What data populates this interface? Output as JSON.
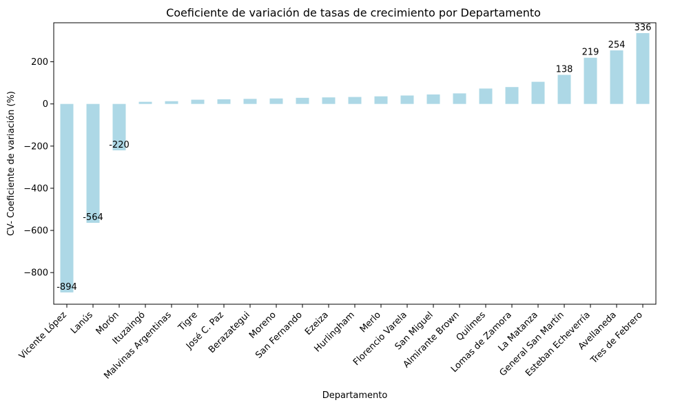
{
  "chart_data": {
    "type": "bar",
    "title": "Coeficiente de variación de tasas de crecimiento por Departamento",
    "xlabel": "Departamento",
    "ylabel": "CV- Coeficiente de variación (%)",
    "ylim": [
      -950,
      385
    ],
    "yticks": [
      -800,
      -600,
      -400,
      -200,
      0,
      200
    ],
    "grid": false,
    "legend": "none",
    "bar_color": "#add8e6",
    "categories": [
      "Vicente López",
      "Lanús",
      "Morón",
      "Ituzaingó",
      "Malvinas Argentinas",
      "Tigre",
      "José C. Paz",
      "Berazategui",
      "Moreno",
      "San Fernando",
      "Ezeiza",
      "Hurlingham",
      "Merlo",
      "Florencio Varela",
      "San Miguel",
      "Almirante Brown",
      "Quilmes",
      "Lomas de Zamora",
      "La Matanza",
      "General San Martín",
      "Esteban Echeverría",
      "Avellaneda",
      "Tres de Febrero"
    ],
    "values": [
      -894,
      -564,
      -220,
      10,
      13,
      20,
      22,
      24,
      26,
      29,
      31,
      33,
      36,
      40,
      45,
      50,
      73,
      80,
      105,
      138,
      219,
      254,
      336
    ],
    "data_labels": [
      {
        "index": 0,
        "text": "-894"
      },
      {
        "index": 1,
        "text": "-564"
      },
      {
        "index": 2,
        "text": "-220"
      },
      {
        "index": 19,
        "text": "138"
      },
      {
        "index": 20,
        "text": "219"
      },
      {
        "index": 21,
        "text": "254"
      },
      {
        "index": 22,
        "text": "336"
      }
    ]
  }
}
